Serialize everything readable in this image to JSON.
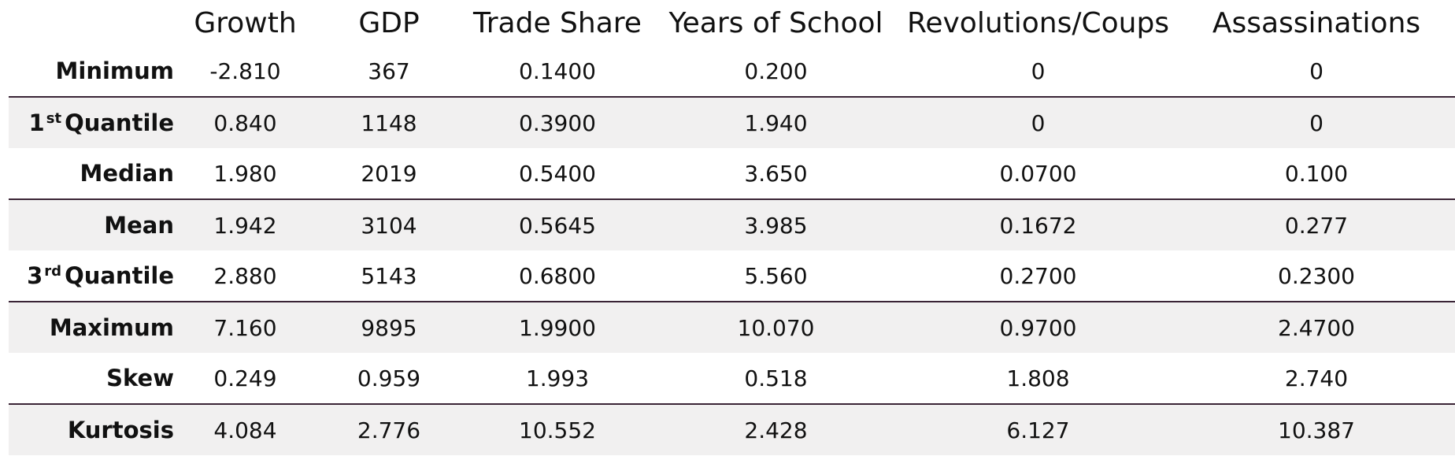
{
  "table": {
    "columns": [
      "Growth",
      "GDP",
      "Trade Share",
      "Years of School",
      "Revolutions/Coups",
      "Assassinations"
    ],
    "rows": [
      {
        "label": "Minimum",
        "label_main": "",
        "label_sup": "",
        "label_tail": "",
        "values": [
          "-2.810",
          "367",
          "0.1400",
          "0.200",
          "0",
          "0"
        ]
      },
      {
        "label": "",
        "label_main": "1",
        "label_sup": "st",
        "label_tail": "Quantile",
        "values": [
          "0.840",
          "1148",
          "0.3900",
          "1.940",
          "0",
          "0"
        ]
      },
      {
        "label": "Median",
        "label_main": "",
        "label_sup": "",
        "label_tail": "",
        "values": [
          "1.980",
          "2019",
          "0.5400",
          "3.650",
          "0.0700",
          "0.100"
        ]
      },
      {
        "label": "Mean",
        "label_main": "",
        "label_sup": "",
        "label_tail": "",
        "values": [
          "1.942",
          "3104",
          "0.5645",
          "3.985",
          "0.1672",
          "0.277"
        ]
      },
      {
        "label": "",
        "label_main": "3",
        "label_sup": "rd",
        "label_tail": "Quantile",
        "values": [
          "2.880",
          "5143",
          "0.6800",
          "5.560",
          "0.2700",
          "0.2300"
        ]
      },
      {
        "label": "Maximum",
        "label_main": "",
        "label_sup": "",
        "label_tail": "",
        "values": [
          "7.160",
          "9895",
          "1.9900",
          "10.070",
          "0.9700",
          "2.4700"
        ]
      },
      {
        "label": "Skew",
        "label_main": "",
        "label_sup": "",
        "label_tail": "",
        "values": [
          "0.249",
          "0.959",
          "1.993",
          "0.518",
          "1.808",
          "2.740"
        ]
      },
      {
        "label": "Kurtosis",
        "label_main": "",
        "label_sup": "",
        "label_tail": "",
        "values": [
          "4.084",
          "2.776",
          "10.552",
          "2.428",
          "6.127",
          "10.387"
        ]
      }
    ],
    "shaded_rows": [
      1,
      3,
      5,
      7
    ],
    "row_shade_color": "#f1f0f0",
    "rule_color": "#3a2436"
  }
}
